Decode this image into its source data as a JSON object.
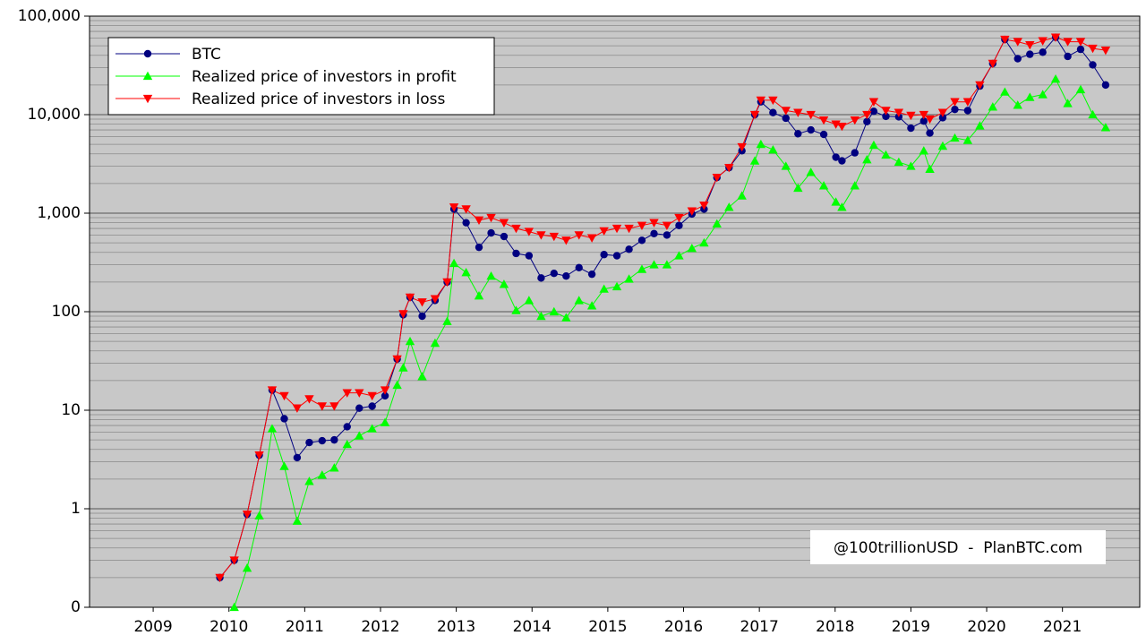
{
  "chart_data": {
    "type": "line",
    "log_scale": true,
    "grid": true,
    "legend": "upper left",
    "background": "#c8c8c8",
    "annotation": "@100trillionUSD  -  PlanBTC.com",
    "x": [
      2009.88,
      2010.07,
      2010.24,
      2010.4,
      2010.57,
      2010.73,
      2010.9,
      2011.06,
      2011.23,
      2011.39,
      2011.56,
      2011.72,
      2011.89,
      2012.06,
      2012.22,
      2012.3,
      2012.39,
      2012.55,
      2012.72,
      2012.88,
      2012.97,
      2013.13,
      2013.3,
      2013.46,
      2013.63,
      2013.79,
      2013.96,
      2014.12,
      2014.29,
      2014.45,
      2014.62,
      2014.79,
      2014.95,
      2015.12,
      2015.28,
      2015.45,
      2015.61,
      2015.78,
      2015.94,
      2016.11,
      2016.27,
      2016.44,
      2016.6,
      2016.77,
      2016.94,
      2017.02,
      2017.18,
      2017.35,
      2017.51,
      2017.68,
      2017.85,
      2018.01,
      2018.09,
      2018.26,
      2018.42,
      2018.51,
      2018.67,
      2018.84,
      2019.0,
      2019.17,
      2019.25,
      2019.42,
      2019.58,
      2019.75,
      2019.91,
      2020.08,
      2020.24,
      2020.41,
      2020.57,
      2020.74,
      2020.91,
      2021.07,
      2021.24,
      2021.4,
      2021.57
    ],
    "series": [
      {
        "name": "BTC",
        "color": "#000080",
        "marker": "circle",
        "values": [
          0.2,
          0.3,
          0.88,
          3.5,
          16,
          8.2,
          3.3,
          4.7,
          4.9,
          5,
          6.8,
          10.5,
          11,
          14,
          33,
          93,
          140,
          90,
          130,
          200,
          1100,
          800,
          450,
          630,
          580,
          390,
          370,
          220,
          245,
          230,
          280,
          240,
          380,
          370,
          430,
          530,
          620,
          600,
          750,
          980,
          1100,
          2300,
          2900,
          4300,
          10000,
          13500,
          10500,
          9200,
          6400,
          7000,
          6300,
          3700,
          3400,
          4100,
          8500,
          10800,
          9600,
          9500,
          7300,
          8600,
          6500,
          9300,
          11300,
          11000,
          19500,
          33000,
          58000,
          37000,
          41000,
          43000,
          61000,
          39000,
          46000,
          32000,
          20000
        ]
      },
      {
        "name": "Realized price of investors in profit",
        "color": "#00ff00",
        "marker": "triangle-up",
        "values": [
          null,
          0.1,
          0.25,
          0.85,
          6.5,
          2.7,
          0.75,
          1.9,
          2.2,
          2.6,
          4.5,
          5.5,
          6.5,
          7.5,
          18,
          27,
          50,
          22,
          48,
          80,
          310,
          250,
          145,
          230,
          190,
          103,
          130,
          90,
          100,
          87,
          130,
          115,
          170,
          180,
          215,
          270,
          300,
          300,
          370,
          440,
          500,
          780,
          1150,
          1500,
          3400,
          5000,
          4400,
          3000,
          1800,
          2600,
          1900,
          1300,
          1150,
          1900,
          3500,
          4900,
          3900,
          3300,
          3000,
          4300,
          2800,
          4800,
          5800,
          5500,
          7700,
          12000,
          17000,
          12500,
          15000,
          16000,
          23000,
          13000,
          18000,
          10000,
          7400
        ]
      },
      {
        "name": "Realized price of investors in loss",
        "color": "#ff0000",
        "marker": "triangle-down",
        "values": [
          0.2,
          0.3,
          0.88,
          3.5,
          16,
          14,
          10.5,
          13,
          11,
          11,
          15,
          15,
          14,
          16,
          33,
          95,
          140,
          125,
          135,
          200,
          1150,
          1100,
          850,
          900,
          800,
          700,
          650,
          600,
          580,
          530,
          600,
          560,
          660,
          700,
          700,
          750,
          800,
          750,
          900,
          1050,
          1200,
          2300,
          2900,
          4700,
          10000,
          14000,
          14000,
          11000,
          10500,
          10000,
          8800,
          8000,
          7600,
          8800,
          10000,
          13500,
          11000,
          10500,
          9800,
          10000,
          9000,
          10500,
          13500,
          13500,
          20000,
          33000,
          58000,
          55000,
          51000,
          56000,
          61000,
          55000,
          55000,
          47000,
          45000
        ]
      }
    ],
    "xlim": [
      2008.16,
      2022.02
    ],
    "xticks": [
      2009,
      2010,
      2011,
      2012,
      2013,
      2014,
      2015,
      2016,
      2017,
      2018,
      2019,
      2020,
      2021
    ],
    "ylim": [
      0.1,
      100000
    ],
    "yticks": [
      {
        "value": 0.1,
        "label": "0"
      },
      1,
      10,
      100,
      {
        "value": 1000,
        "label": "1,000"
      },
      {
        "value": 10000,
        "label": "10,000"
      },
      {
        "value": 100000,
        "label": "100,000"
      }
    ]
  }
}
